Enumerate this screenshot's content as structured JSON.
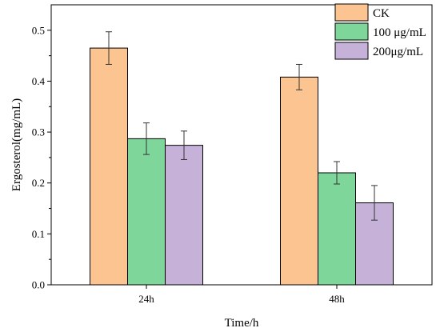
{
  "chart_data": {
    "type": "bar",
    "categories": [
      "24h",
      "48h"
    ],
    "series": [
      {
        "name": "CK",
        "color": "#fcc490",
        "values": [
          0.465,
          0.408
        ],
        "errors": [
          0.032,
          0.025
        ]
      },
      {
        "name": "100 μg/mL",
        "color": "#7ed69a",
        "values": [
          0.287,
          0.22
        ],
        "errors": [
          0.031,
          0.022
        ]
      },
      {
        "name": "200μg/mL",
        "color": "#c6b1d9",
        "values": [
          0.274,
          0.161
        ],
        "errors": [
          0.028,
          0.034
        ]
      }
    ],
    "title": "",
    "xlabel": "Time/h",
    "ylabel": "Ergosterol(mg/mL)",
    "ylim": [
      0,
      0.55
    ],
    "yticks": [
      0.0,
      0.1,
      0.2,
      0.3,
      0.4,
      0.5
    ],
    "ytick_labels": [
      "0.0",
      "0.1",
      "0.2",
      "0.3",
      "0.4",
      "0.5"
    ],
    "grid": false,
    "legend_position": "top-right"
  }
}
